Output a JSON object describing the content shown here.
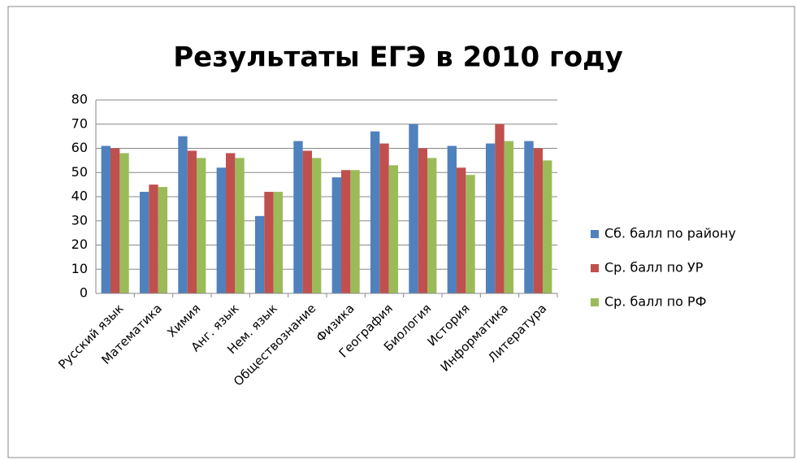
{
  "chart_data": {
    "type": "bar",
    "title": "Результаты ЕГЭ в 2010 году",
    "categories": [
      "Русский язык",
      "Математика",
      "Химия",
      "Анг. язык",
      "Нем. язык",
      "Обществознание",
      "Физика",
      "География",
      "Биология",
      "История",
      "Информатика",
      "Литература"
    ],
    "series": [
      {
        "name": "Сб. балл по району",
        "color": "#4f81bd",
        "values": [
          61,
          42,
          65,
          52,
          32,
          63,
          48,
          67,
          70,
          61,
          62,
          63
        ]
      },
      {
        "name": "Ср. балл по УР",
        "color": "#c0504d",
        "values": [
          60,
          45,
          59,
          58,
          42,
          59,
          51,
          62,
          60,
          52,
          70,
          60
        ]
      },
      {
        "name": "Ср. балл по РФ",
        "color": "#9bbb59",
        "values": [
          58,
          44,
          56,
          56,
          42,
          56,
          51,
          53,
          56,
          49,
          63,
          55
        ]
      }
    ],
    "ylim": [
      0,
      80
    ],
    "yticks": [
      0,
      10,
      20,
      30,
      40,
      50,
      60,
      70,
      80
    ],
    "grid": true,
    "legend": "right"
  }
}
